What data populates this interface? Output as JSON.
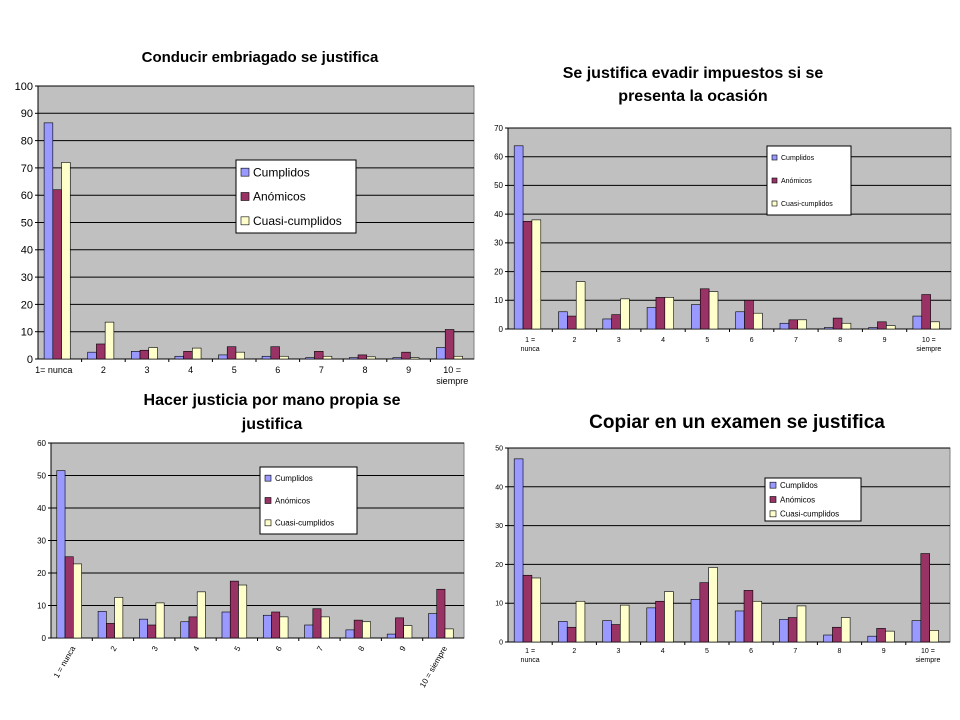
{
  "colors": {
    "plot_bg": "#c0c0c0",
    "grid": "#000000",
    "series": [
      "#9999ff",
      "#993366",
      "#ffffcc"
    ]
  },
  "chart_data": [
    {
      "type": "bar",
      "title": [
        "Conducir embriagado se justifica"
      ],
      "categories": [
        "1= nunca",
        "2",
        "3",
        "4",
        "5",
        "6",
        "7",
        "8",
        "9",
        "10 = siempre"
      ],
      "ylim": [
        0,
        100
      ],
      "yticks": [
        0,
        10,
        20,
        30,
        40,
        50,
        60,
        70,
        80,
        90,
        100
      ],
      "grid": true,
      "legend": "inside-center",
      "series": [
        {
          "name": "Cumplidos",
          "values": [
            86.5,
            2.5,
            2.8,
            1.0,
            1.5,
            1.0,
            0.5,
            0.5,
            0.5,
            4.2
          ]
        },
        {
          "name": "Anómicos",
          "values": [
            62,
            5.5,
            3.2,
            2.8,
            4.5,
            4.5,
            2.8,
            1.5,
            2.5,
            10.8
          ]
        },
        {
          "name": "Cuasi-cumplidos",
          "values": [
            72,
            13.5,
            4.2,
            4.0,
            2.5,
            1.0,
            1.0,
            0.8,
            0.5,
            1.0
          ]
        }
      ]
    },
    {
      "type": "bar",
      "title": [
        "Se justifica evadir impuestos si se",
        "presenta la ocasión"
      ],
      "categories": [
        "1 = nunca",
        "2",
        "3",
        "4",
        "5",
        "6",
        "7",
        "8",
        "9",
        "10 = siempre"
      ],
      "ylim": [
        0,
        70
      ],
      "yticks": [
        0,
        10,
        20,
        30,
        40,
        50,
        60,
        70
      ],
      "grid": true,
      "legend": "inside-top-right",
      "series": [
        {
          "name": "Cumplidos",
          "values": [
            63.8,
            6,
            3.5,
            7.5,
            8.5,
            6,
            2,
            0.5,
            0.5,
            4.5
          ]
        },
        {
          "name": "Anómicos",
          "values": [
            37.5,
            4.5,
            5,
            11,
            14,
            10,
            3.2,
            3.8,
            2.5,
            12
          ]
        },
        {
          "name": "Cuasi-cumplidos",
          "values": [
            38,
            16.5,
            10.5,
            11,
            13,
            5.5,
            3.2,
            2,
            1.2,
            2.5
          ]
        }
      ]
    },
    {
      "type": "bar",
      "title": [
        "Hacer justicia por mano propia se",
        "justifica"
      ],
      "categories": [
        "1 = nunca",
        "2",
        "3",
        "4",
        "5",
        "6",
        "7",
        "8",
        "9",
        "10 = siempre"
      ],
      "ylim": [
        0,
        60
      ],
      "yticks": [
        0,
        10,
        20,
        30,
        40,
        50,
        60
      ],
      "grid": true,
      "legend": "inside-top-right",
      "series": [
        {
          "name": "Cumplidos",
          "values": [
            51.5,
            8.2,
            5.8,
            5,
            8,
            7,
            4,
            2.5,
            1.2,
            7.5
          ]
        },
        {
          "name": "Anómicos",
          "values": [
            25,
            4.5,
            4,
            6.5,
            17.5,
            8,
            9,
            5.5,
            6.2,
            15
          ]
        },
        {
          "name": "Cuasi-cumplidos",
          "values": [
            22.8,
            12.5,
            10.8,
            14.2,
            16.3,
            6.5,
            6.5,
            5,
            3.8,
            2.8
          ]
        }
      ]
    },
    {
      "type": "bar",
      "title": [
        "Copiar en un examen se justifica"
      ],
      "categories": [
        "1 = nunca",
        "2",
        "3",
        "4",
        "5",
        "6",
        "7",
        "8",
        "9",
        "10 = siempre"
      ],
      "ylim": [
        0,
        50
      ],
      "yticks": [
        0,
        10,
        20,
        30,
        40,
        50
      ],
      "grid": true,
      "legend": "inside-top-left",
      "series": [
        {
          "name": "Cumplidos",
          "values": [
            47.2,
            5.3,
            5.5,
            8.8,
            11,
            8,
            5.8,
            1.8,
            1.5,
            5.5
          ]
        },
        {
          "name": "Anómicos",
          "values": [
            17.2,
            3.8,
            4.5,
            10.5,
            15.3,
            13.3,
            6.3,
            3.8,
            3.5,
            22.8
          ]
        },
        {
          "name": "Cuasi-cumplidos",
          "values": [
            16.5,
            10.5,
            9.5,
            13,
            19.2,
            10.5,
            9.3,
            6.3,
            2.8,
            3
          ]
        }
      ]
    }
  ]
}
